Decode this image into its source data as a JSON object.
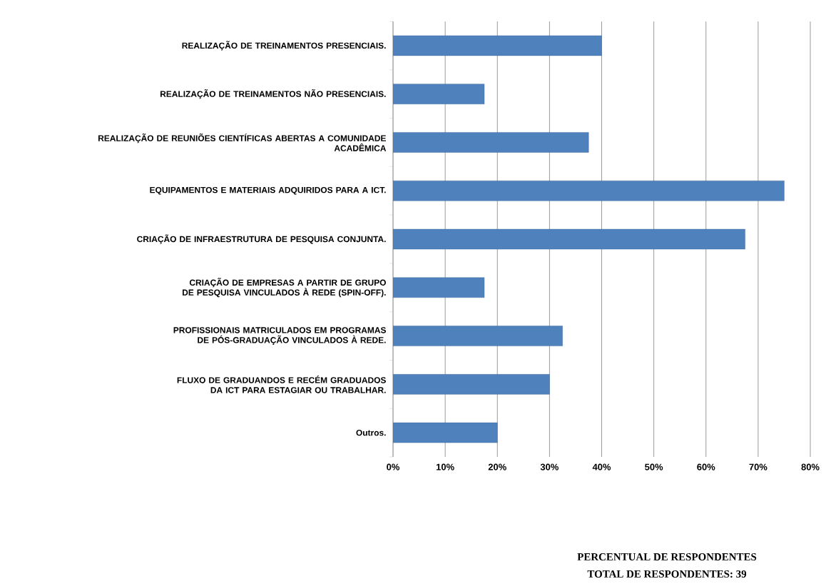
{
  "chart_data": {
    "type": "bar",
    "orientation": "horizontal",
    "categories": [
      "REALIZAÇÃO DE TREINAMENTOS PRESENCIAIS.",
      "REALIZAÇÃO DE TREINAMENTOS NÃO PRESENCIAIS.",
      "REALIZAÇÃO DE REUNIÕES CIENTÍFICAS ABERTAS A COMUNIDADE ACADÊMICA",
      "EQUIPAMENTOS E MATERIAIS ADQUIRIDOS PARA A ICT.",
      "CRIAÇÃO DE INFRAESTRUTURA DE PESQUISA CONJUNTA.",
      "CRIAÇÃO DE EMPRESAS A PARTIR DE GRUPO DE PESQUISA VINCULADOS À REDE (SPIN-OFF).",
      "PROFISSIONAIS MATRICULADOS EM PROGRAMAS DE PÓS-GRADUAÇÃO VINCULADOS À REDE.",
      "FLUXO DE GRADUANDOS E RECÉM GRADUADOS DA ICT PARA ESTAGIAR OU TRABALHAR.",
      "Outros."
    ],
    "values": [
      40,
      17.5,
      37.5,
      75,
      67.5,
      17.5,
      32.5,
      30,
      20
    ],
    "color": "#4f81bd",
    "xlim": [
      0,
      80
    ],
    "xticks": [
      {
        "value": 0,
        "label": "0%"
      },
      {
        "value": 10,
        "label": "10%"
      },
      {
        "value": 20,
        "label": "20%"
      },
      {
        "value": 30,
        "label": "30%"
      },
      {
        "value": 40,
        "label": "40%"
      },
      {
        "value": 50,
        "label": "50%"
      },
      {
        "value": 60,
        "label": "60%"
      },
      {
        "value": 70,
        "label": "70%"
      },
      {
        "value": 80,
        "label": "80%"
      }
    ],
    "annotations": [
      "PERCENTUAL DE RESPONDENTES",
      "TOTAL DE RESPONDENTES: 39"
    ],
    "grid": "x"
  }
}
